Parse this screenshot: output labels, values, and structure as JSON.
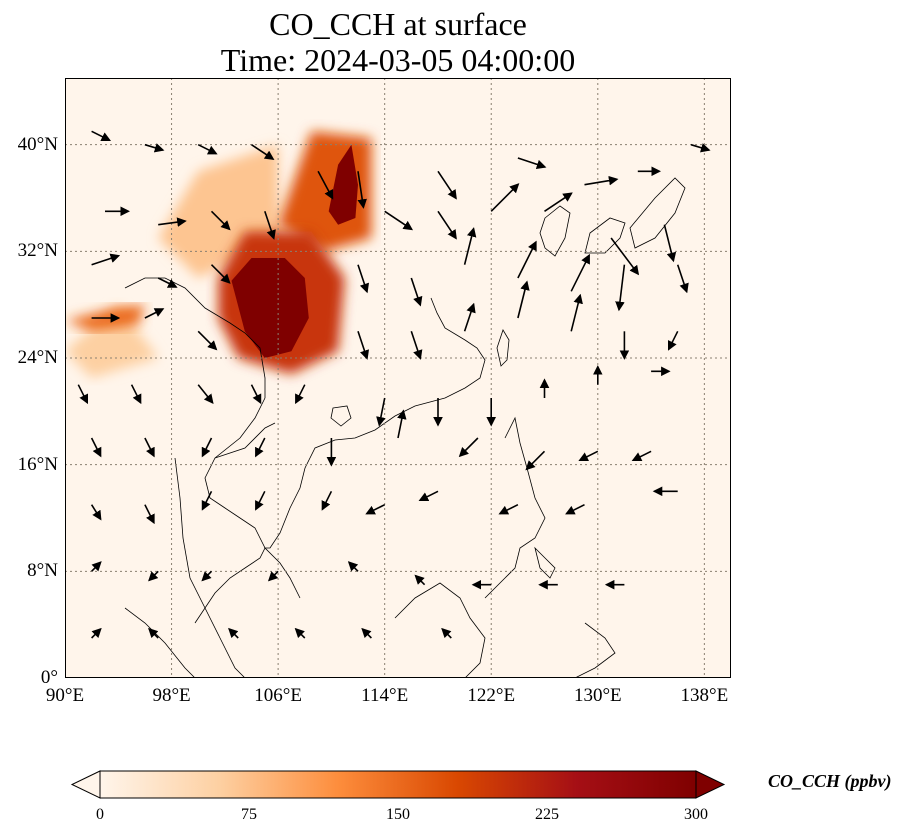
{
  "title": {
    "line1": "CO_CCH at surface",
    "line2": "Time: 2024-03-05 04:00:00"
  },
  "map": {
    "extent": {
      "lon_min": 90,
      "lon_max": 140,
      "lat_min": 0,
      "lat_max": 45
    },
    "lat_ticks": [
      {
        "value": 40,
        "label": "40°N"
      },
      {
        "value": 32,
        "label": "32°N"
      },
      {
        "value": 24,
        "label": "24°N"
      },
      {
        "value": 16,
        "label": "16°N"
      },
      {
        "value": 8,
        "label": "8°N"
      },
      {
        "value": 0,
        "label": "0°"
      }
    ],
    "lon_ticks": [
      {
        "value": 90,
        "label": "90°E"
      },
      {
        "value": 98,
        "label": "98°E"
      },
      {
        "value": 106,
        "label": "106°E"
      },
      {
        "value": 114,
        "label": "114°E"
      },
      {
        "value": 122,
        "label": "122°E"
      },
      {
        "value": 130,
        "label": "130°E"
      },
      {
        "value": 138,
        "label": "138°E"
      }
    ],
    "background_color": "#fff5eb",
    "plumes": [
      {
        "name": "main-plume",
        "level": 300,
        "points": [
          [
            102.5,
            29.8
          ],
          [
            104,
            31.5
          ],
          [
            106.5,
            31.5
          ],
          [
            108,
            30
          ],
          [
            108.3,
            27
          ],
          [
            107,
            24.5
          ],
          [
            105,
            24
          ],
          [
            103.5,
            26
          ]
        ]
      },
      {
        "name": "north-plume",
        "level": 300,
        "points": [
          [
            109.8,
            35
          ],
          [
            110.5,
            38.5
          ],
          [
            111.5,
            40
          ],
          [
            112,
            37
          ],
          [
            111.8,
            34.5
          ],
          [
            110.5,
            34
          ]
        ]
      },
      {
        "name": "sichuan-halo",
        "level": 200,
        "points": [
          [
            101.5,
            30
          ],
          [
            103.5,
            33.5
          ],
          [
            108.5,
            33.5
          ],
          [
            111,
            30
          ],
          [
            110.5,
            24.5
          ],
          [
            107,
            22.8
          ],
          [
            103,
            24
          ],
          [
            101.5,
            27
          ]
        ]
      },
      {
        "name": "north-halo",
        "level": 170,
        "points": [
          [
            106,
            34
          ],
          [
            108.5,
            41
          ],
          [
            113,
            40.5
          ],
          [
            113,
            33
          ],
          [
            109.5,
            32
          ]
        ]
      },
      {
        "name": "myanmar-streak",
        "level": 150,
        "points": [
          [
            90,
            26.8
          ],
          [
            94,
            27.8
          ],
          [
            96,
            28
          ],
          [
            95.5,
            26.5
          ],
          [
            92,
            26
          ]
        ]
      },
      {
        "name": "west-haze",
        "level": 70,
        "points": [
          [
            97,
            33
          ],
          [
            100,
            38
          ],
          [
            106,
            40
          ],
          [
            106,
            33
          ],
          [
            100,
            30
          ]
        ]
      },
      {
        "name": "bengal-haze",
        "level": 60,
        "points": [
          [
            90,
            24.5
          ],
          [
            94,
            28
          ],
          [
            97,
            24
          ],
          [
            92,
            22.5
          ]
        ]
      }
    ],
    "wind_vectors": [
      {
        "lon": 92,
        "lat": 41,
        "u": 1,
        "v": -0.5
      },
      {
        "lon": 96,
        "lat": 40,
        "u": 1,
        "v": -0.3
      },
      {
        "lon": 100,
        "lat": 40,
        "u": 1,
        "v": -0.5
      },
      {
        "lon": 104,
        "lat": 40,
        "u": 1.2,
        "v": -0.8
      },
      {
        "lon": 109,
        "lat": 38,
        "u": 0.8,
        "v": -1.5
      },
      {
        "lon": 112,
        "lat": 38,
        "u": 0.3,
        "v": -2
      },
      {
        "lon": 118,
        "lat": 38,
        "u": 1,
        "v": -1.5
      },
      {
        "lon": 124,
        "lat": 39,
        "u": 1.5,
        "v": -0.5
      },
      {
        "lon": 129,
        "lat": 37,
        "u": 1.8,
        "v": 0.3
      },
      {
        "lon": 133,
        "lat": 38,
        "u": 1.2,
        "v": 0
      },
      {
        "lon": 137,
        "lat": 40,
        "u": 1,
        "v": -0.3
      },
      {
        "lon": 93,
        "lat": 35,
        "u": 1.3,
        "v": 0
      },
      {
        "lon": 97,
        "lat": 34,
        "u": 1.5,
        "v": 0.2
      },
      {
        "lon": 101,
        "lat": 35,
        "u": 1,
        "v": -1
      },
      {
        "lon": 105,
        "lat": 35,
        "u": 0.5,
        "v": -1.5
      },
      {
        "lon": 114,
        "lat": 35,
        "u": 1.5,
        "v": -1
      },
      {
        "lon": 118,
        "lat": 35,
        "u": 1,
        "v": -1.5
      },
      {
        "lon": 122,
        "lat": 35,
        "u": 1.5,
        "v": 1.5
      },
      {
        "lon": 126,
        "lat": 35,
        "u": 1.5,
        "v": 1
      },
      {
        "lon": 131,
        "lat": 33,
        "u": 1.5,
        "v": -2
      },
      {
        "lon": 135,
        "lat": 34,
        "u": 0.5,
        "v": -2
      },
      {
        "lon": 92,
        "lat": 31,
        "u": 1.5,
        "v": 0.5
      },
      {
        "lon": 97,
        "lat": 30,
        "u": 1,
        "v": -0.5
      },
      {
        "lon": 101,
        "lat": 31,
        "u": 1,
        "v": -1
      },
      {
        "lon": 112,
        "lat": 31,
        "u": 0.5,
        "v": -1.5
      },
      {
        "lon": 116,
        "lat": 30,
        "u": 0.5,
        "v": -1.5
      },
      {
        "lon": 120,
        "lat": 31,
        "u": 0.5,
        "v": 2
      },
      {
        "lon": 124,
        "lat": 30,
        "u": 1,
        "v": 2
      },
      {
        "lon": 128,
        "lat": 29,
        "u": 1,
        "v": 2
      },
      {
        "lon": 132,
        "lat": 31,
        "u": -0.3,
        "v": -2.5
      },
      {
        "lon": 136,
        "lat": 31,
        "u": 0.5,
        "v": -1.5
      },
      {
        "lon": 92,
        "lat": 27,
        "u": 1.5,
        "v": 0
      },
      {
        "lon": 96,
        "lat": 27,
        "u": 1,
        "v": 0.5
      },
      {
        "lon": 100,
        "lat": 26,
        "u": 1,
        "v": -1
      },
      {
        "lon": 112,
        "lat": 26,
        "u": 0.5,
        "v": -1.5
      },
      {
        "lon": 116,
        "lat": 26,
        "u": 0.5,
        "v": -1.5
      },
      {
        "lon": 120,
        "lat": 26,
        "u": 0.5,
        "v": 1.5
      },
      {
        "lon": 124,
        "lat": 27,
        "u": 0.5,
        "v": 2
      },
      {
        "lon": 128,
        "lat": 26,
        "u": 0.5,
        "v": 2
      },
      {
        "lon": 132,
        "lat": 26,
        "u": 0,
        "v": -1.5
      },
      {
        "lon": 136,
        "lat": 26,
        "u": -0.5,
        "v": -1
      },
      {
        "lon": 91,
        "lat": 22,
        "u": 0.5,
        "v": -1
      },
      {
        "lon": 95,
        "lat": 22,
        "u": 0.5,
        "v": -1
      },
      {
        "lon": 100,
        "lat": 22,
        "u": 0.8,
        "v": -1
      },
      {
        "lon": 104,
        "lat": 22,
        "u": 0.5,
        "v": -1
      },
      {
        "lon": 108,
        "lat": 22,
        "u": -0.5,
        "v": -1
      },
      {
        "lon": 114,
        "lat": 21,
        "u": -0.3,
        "v": -1.5
      },
      {
        "lon": 118,
        "lat": 21,
        "u": 0,
        "v": -1.5
      },
      {
        "lon": 122,
        "lat": 21,
        "u": 0,
        "v": -1.5
      },
      {
        "lon": 126,
        "lat": 21,
        "u": 0,
        "v": 1
      },
      {
        "lon": 130,
        "lat": 22,
        "u": 0,
        "v": 1
      },
      {
        "lon": 134,
        "lat": 23,
        "u": 1,
        "v": 0
      },
      {
        "lon": 92,
        "lat": 18,
        "u": 0.5,
        "v": -1
      },
      {
        "lon": 96,
        "lat": 18,
        "u": 0.5,
        "v": -1
      },
      {
        "lon": 101,
        "lat": 18,
        "u": -0.5,
        "v": -1
      },
      {
        "lon": 105,
        "lat": 18,
        "u": -0.5,
        "v": -1
      },
      {
        "lon": 110,
        "lat": 18,
        "u": 0,
        "v": -1.5
      },
      {
        "lon": 115,
        "lat": 18,
        "u": 0.3,
        "v": 1.5
      },
      {
        "lon": 121,
        "lat": 18,
        "u": -1,
        "v": -1
      },
      {
        "lon": 126,
        "lat": 17,
        "u": -1,
        "v": -1
      },
      {
        "lon": 130,
        "lat": 17,
        "u": -1,
        "v": -0.5
      },
      {
        "lon": 134,
        "lat": 17,
        "u": -1,
        "v": -0.5
      },
      {
        "lon": 92,
        "lat": 13,
        "u": 0.5,
        "v": -0.8
      },
      {
        "lon": 96,
        "lat": 13,
        "u": 0.5,
        "v": -1
      },
      {
        "lon": 101,
        "lat": 14,
        "u": -0.5,
        "v": -1
      },
      {
        "lon": 105,
        "lat": 14,
        "u": -0.5,
        "v": -1
      },
      {
        "lon": 110,
        "lat": 14,
        "u": -0.5,
        "v": -1
      },
      {
        "lon": 114,
        "lat": 13,
        "u": -1,
        "v": -0.5
      },
      {
        "lon": 118,
        "lat": 14,
        "u": -1,
        "v": -0.5
      },
      {
        "lon": 124,
        "lat": 13,
        "u": -1,
        "v": -0.5
      },
      {
        "lon": 129,
        "lat": 13,
        "u": -1,
        "v": -0.5
      },
      {
        "lon": 136,
        "lat": 14,
        "u": -1.3,
        "v": 0
      },
      {
        "lon": 92,
        "lat": 8,
        "u": 0.5,
        "v": 0.5
      },
      {
        "lon": 97,
        "lat": 8,
        "u": -0.5,
        "v": -0.5
      },
      {
        "lon": 101,
        "lat": 8,
        "u": -0.5,
        "v": -0.5
      },
      {
        "lon": 106,
        "lat": 8,
        "u": -0.5,
        "v": -0.5
      },
      {
        "lon": 112,
        "lat": 8,
        "u": -0.5,
        "v": 0.5
      },
      {
        "lon": 117,
        "lat": 7,
        "u": -0.5,
        "v": 0.5
      },
      {
        "lon": 122,
        "lat": 7,
        "u": -1,
        "v": 0
      },
      {
        "lon": 127,
        "lat": 7,
        "u": -1,
        "v": 0
      },
      {
        "lon": 132,
        "lat": 7,
        "u": -1,
        "v": 0
      },
      {
        "lon": 92,
        "lat": 3,
        "u": 0.5,
        "v": 0.5
      },
      {
        "lon": 97,
        "lat": 3,
        "u": -0.5,
        "v": 0.5
      },
      {
        "lon": 103,
        "lat": 3,
        "u": -0.5,
        "v": 0.5
      },
      {
        "lon": 108,
        "lat": 3,
        "u": -0.5,
        "v": 0.5
      },
      {
        "lon": 113,
        "lat": 3,
        "u": -0.5,
        "v": 0.5
      },
      {
        "lon": 119,
        "lat": 3,
        "u": -0.5,
        "v": 0.5
      }
    ]
  },
  "colorbar": {
    "label": "CO_CCH (ppbv)",
    "min": 0,
    "max": 300,
    "ticks": [
      {
        "value": 0,
        "label": "0"
      },
      {
        "value": 75,
        "label": "75"
      },
      {
        "value": 150,
        "label": "150"
      },
      {
        "value": 225,
        "label": "225"
      },
      {
        "value": 300,
        "label": "300"
      }
    ],
    "colors": [
      "#fff5eb",
      "#fdd0a2",
      "#fd8d3c",
      "#d94801",
      "#a50f15",
      "#7f0000"
    ]
  }
}
